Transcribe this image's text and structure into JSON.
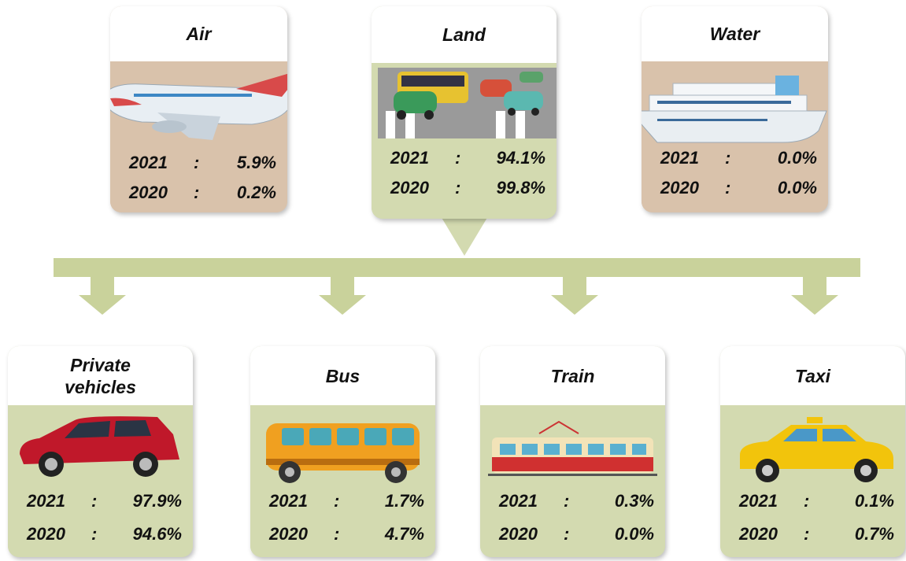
{
  "top": [
    {
      "title": "Air",
      "rows": [
        {
          "year": "2021",
          "sep": ":",
          "value": "5.9%"
        },
        {
          "year": "2020",
          "sep": ":",
          "value": "0.2%"
        }
      ]
    },
    {
      "title": "Land",
      "rows": [
        {
          "year": "2021",
          "sep": ":",
          "value": "94.1%"
        },
        {
          "year": "2020",
          "sep": ":",
          "value": "99.8%"
        }
      ]
    },
    {
      "title": "Water",
      "rows": [
        {
          "year": "2021",
          "sep": ":",
          "value": "0.0%"
        },
        {
          "year": "2020",
          "sep": ":",
          "value": "0.0%"
        }
      ]
    }
  ],
  "bottom": [
    {
      "title": "Private vehicles",
      "rows": [
        {
          "year": "2021",
          "sep": ":",
          "value": "97.9%"
        },
        {
          "year": "2020",
          "sep": ":",
          "value": "94.6%"
        }
      ]
    },
    {
      "title": "Bus",
      "rows": [
        {
          "year": "2021",
          "sep": ":",
          "value": "1.7%"
        },
        {
          "year": "2020",
          "sep": ":",
          "value": "4.7%"
        }
      ]
    },
    {
      "title": "Train",
      "rows": [
        {
          "year": "2021",
          "sep": ":",
          "value": "0.3%"
        },
        {
          "year": "2020",
          "sep": ":",
          "value": "0.0%"
        }
      ]
    },
    {
      "title": "Taxi",
      "rows": [
        {
          "year": "2021",
          "sep": ":",
          "value": "0.1%"
        },
        {
          "year": "2020",
          "sep": ":",
          "value": "0.7%"
        }
      ]
    }
  ]
}
